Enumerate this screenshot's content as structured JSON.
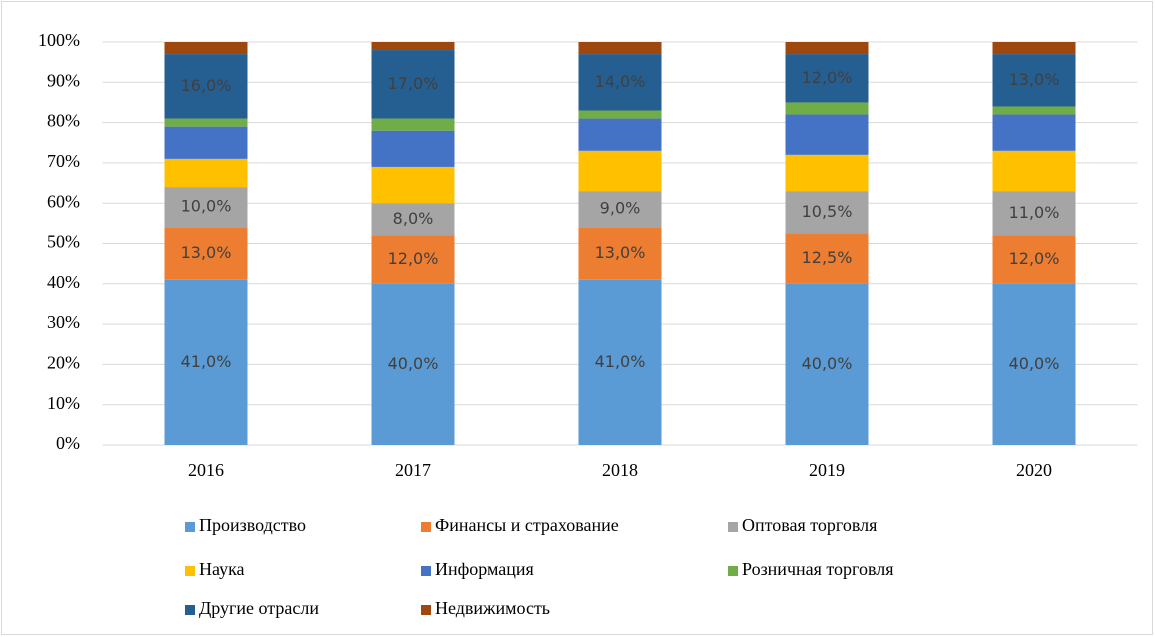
{
  "chart_data": {
    "type": "stacked_bar",
    "categories": [
      "2016",
      "2017",
      "2018",
      "2019",
      "2020"
    ],
    "series": [
      {
        "name": "Производство",
        "color": "#5b9bd5",
        "values": [
          41,
          40,
          41,
          40,
          40
        ],
        "value_labels": [
          "41,0%",
          "40,0%",
          "41,0%",
          "40,0%",
          "40,0%"
        ]
      },
      {
        "name": "Финансы и страхование",
        "color": "#ed7d31",
        "values": [
          13,
          12,
          13,
          12.5,
          12
        ],
        "value_labels": [
          "13,0%",
          "12,0%",
          "13,0%",
          "12,5%",
          "12,0%"
        ]
      },
      {
        "name": "Оптовая торговля",
        "color": "#a5a5a5",
        "values": [
          10,
          8,
          9,
          10.5,
          11
        ],
        "value_labels": [
          "10,0%",
          "8,0%",
          "9,0%",
          "10,5%",
          "11,0%"
        ]
      },
      {
        "name": "Наука",
        "color": "#ffc000",
        "values": [
          7,
          9,
          10,
          9,
          10
        ]
      },
      {
        "name": "Информация",
        "color": "#4472c4",
        "values": [
          8,
          9,
          8,
          10,
          9
        ]
      },
      {
        "name": "Розничная торговля",
        "color": "#70ad47",
        "values": [
          2,
          3,
          2,
          3,
          2
        ]
      },
      {
        "name": "Другие отрасли",
        "color": "#255e91",
        "values": [
          16,
          17,
          14,
          12,
          13
        ],
        "value_labels": [
          "16,0%",
          "17,0%",
          "14,0%",
          "12,0%",
          "13,0%"
        ]
      },
      {
        "name": "Недвижимость",
        "color": "#9e480e",
        "values": [
          3,
          2,
          3,
          3,
          3
        ]
      }
    ],
    "ylim": [
      0,
      100
    ],
    "yticks": [
      {
        "value": 0,
        "label": "0%"
      },
      {
        "value": 10,
        "label": "10%"
      },
      {
        "value": 20,
        "label": "20%"
      },
      {
        "value": 30,
        "label": "30%"
      },
      {
        "value": 40,
        "label": "40%"
      },
      {
        "value": 50,
        "label": "50%"
      },
      {
        "value": 60,
        "label": "60%"
      },
      {
        "value": 70,
        "label": "70%"
      },
      {
        "value": 80,
        "label": "80%"
      },
      {
        "value": 90,
        "label": "90%"
      },
      {
        "value": 100,
        "label": "100%"
      }
    ],
    "grid": true,
    "legend": "bottom"
  }
}
